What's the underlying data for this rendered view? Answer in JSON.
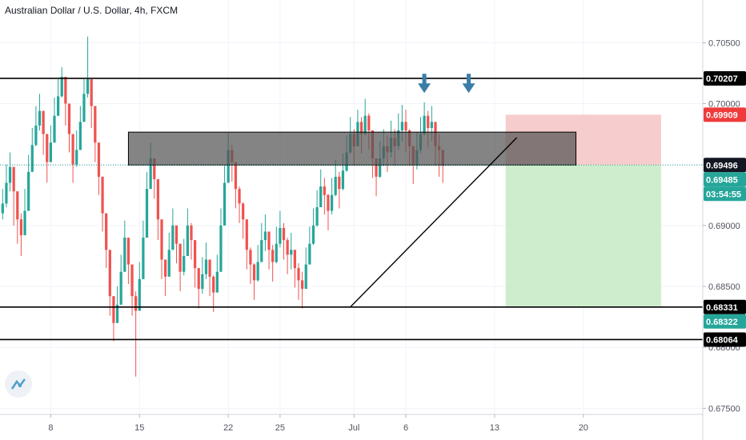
{
  "header": {
    "title": "Australian Dollar / U.S. Dollar, 4h, FXCM"
  },
  "colors": {
    "up": "#26a69a",
    "down": "#ef5350",
    "resistance_box": "#555555",
    "stop_zone": "#f6c6c6",
    "target_zone": "#c8ebc8",
    "current_line": "#26a69a",
    "arrow": "#3a7ea8"
  },
  "price_axis": {
    "ticks": [
      "0.70500",
      "0.70000",
      "0.69500",
      "0.69000",
      "0.68500",
      "0.68000",
      "0.67500"
    ],
    "badges": [
      {
        "label": "0.70207",
        "value": 0.70207,
        "bg": "#000000"
      },
      {
        "label": "0.69909",
        "value": 0.69909,
        "bg": "#ef3b3b"
      },
      {
        "label": "0.69496",
        "value": 0.69496,
        "bg": "#131722"
      },
      {
        "label": "0.69485",
        "value": 0.69485,
        "bg": "#26a69a"
      },
      {
        "label": "03:54:55",
        "value": 0.69318,
        "bg": "#26a69a"
      },
      {
        "label": "0.68331",
        "value": 0.68331,
        "bg": "#000000"
      },
      {
        "label": "0.68322",
        "value": 0.68322,
        "bg": "#26a69a"
      },
      {
        "label": "0.68064",
        "value": 0.68064,
        "bg": "#000000"
      }
    ]
  },
  "time_axis": {
    "ticks": [
      {
        "label": "8",
        "bar": 13
      },
      {
        "label": "15",
        "bar": 37
      },
      {
        "label": "22",
        "bar": 61
      },
      {
        "label": "25",
        "bar": 75
      },
      {
        "label": "Jul",
        "bar": 95
      },
      {
        "label": "6",
        "bar": 109
      },
      {
        "label": "13",
        "bar": 133
      },
      {
        "label": "20",
        "bar": 157
      }
    ]
  },
  "chart_data": {
    "type": "candlestick",
    "title": "Australian Dollar / U.S. Dollar, 4h, FXCM",
    "ylim": [
      0.6745,
      0.7085
    ],
    "bar_count_visible": 190,
    "close": [
      0.6918,
      0.6935,
      0.6948,
      0.6928,
      0.6905,
      0.6892,
      0.6912,
      0.6944,
      0.6966,
      0.6982,
      0.6994,
      0.6975,
      0.6952,
      0.6968,
      0.699,
      0.7006,
      0.7022,
      0.7,
      0.6975,
      0.695,
      0.6962,
      0.6985,
      0.7008,
      0.702,
      0.6998,
      0.6968,
      0.694,
      0.691,
      0.688,
      0.6842,
      0.682,
      0.6835,
      0.6862,
      0.689,
      0.6868,
      0.6842,
      0.683,
      0.6856,
      0.689,
      0.693,
      0.6955,
      0.6938,
      0.6905,
      0.6872,
      0.6858,
      0.688,
      0.69,
      0.6885,
      0.6862,
      0.6875,
      0.69,
      0.6888,
      0.6865,
      0.6848,
      0.686,
      0.6872,
      0.6858,
      0.6845,
      0.6862,
      0.69,
      0.6935,
      0.6962,
      0.6952,
      0.693,
      0.6918,
      0.6905,
      0.688,
      0.6868,
      0.6855,
      0.687,
      0.6888,
      0.6895,
      0.688,
      0.687,
      0.6885,
      0.6898,
      0.6888,
      0.6876,
      0.688,
      0.6865,
      0.6855,
      0.6848,
      0.6868,
      0.6885,
      0.69,
      0.6915,
      0.6932,
      0.6925,
      0.6912,
      0.6925,
      0.694,
      0.693,
      0.6945,
      0.696,
      0.6975,
      0.6965,
      0.6985,
      0.6975,
      0.699,
      0.6978,
      0.6955,
      0.694,
      0.6955,
      0.6965,
      0.696,
      0.6972,
      0.6965,
      0.6978,
      0.6985,
      0.6978,
      0.6965,
      0.695,
      0.6962,
      0.6975,
      0.699,
      0.698,
      0.6985,
      0.6965,
      0.6962,
      0.6949
    ],
    "high": [
      0.693,
      0.695,
      0.696,
      0.694,
      0.6918,
      0.691,
      0.693,
      0.6958,
      0.698,
      0.6998,
      0.7008,
      0.699,
      0.6968,
      0.6982,
      0.7005,
      0.702,
      0.703,
      0.7012,
      0.699,
      0.6965,
      0.6978,
      0.6998,
      0.702,
      0.7055,
      0.701,
      0.6982,
      0.6955,
      0.6925,
      0.6895,
      0.6858,
      0.6836,
      0.685,
      0.6876,
      0.6904,
      0.6882,
      0.6856,
      0.6846,
      0.687,
      0.6904,
      0.6944,
      0.6968,
      0.6952,
      0.692,
      0.6886,
      0.6872,
      0.6894,
      0.6914,
      0.6899,
      0.6876,
      0.6889,
      0.6914,
      0.6902,
      0.6879,
      0.6862,
      0.6874,
      0.6886,
      0.6872,
      0.6859,
      0.6876,
      0.6914,
      0.6949,
      0.6976,
      0.6966,
      0.6944,
      0.6932,
      0.6919,
      0.6894,
      0.6882,
      0.6869,
      0.6884,
      0.6902,
      0.6909,
      0.6894,
      0.6884,
      0.6899,
      0.6912,
      0.6902,
      0.689,
      0.6894,
      0.6879,
      0.6869,
      0.6862,
      0.6882,
      0.6899,
      0.6914,
      0.6929,
      0.6946,
      0.6939,
      0.6926,
      0.6939,
      0.6954,
      0.6944,
      0.6959,
      0.6974,
      0.6989,
      0.6979,
      0.6995,
      0.6989,
      0.7004,
      0.6992,
      0.6969,
      0.6954,
      0.6969,
      0.6979,
      0.6974,
      0.6986,
      0.6979,
      0.6992,
      0.6999,
      0.6995,
      0.6979,
      0.6964,
      0.6976,
      0.6989,
      0.7001,
      0.6994,
      0.6998,
      0.698,
      0.6975,
      0.6962
    ],
    "low": [
      0.6905,
      0.6915,
      0.6928,
      0.69,
      0.6885,
      0.6875,
      0.6895,
      0.6925,
      0.695,
      0.6965,
      0.6978,
      0.6958,
      0.6935,
      0.6952,
      0.6975,
      0.699,
      0.7005,
      0.6982,
      0.696,
      0.6935,
      0.6948,
      0.697,
      0.6992,
      0.7005,
      0.698,
      0.6952,
      0.6925,
      0.6895,
      0.6865,
      0.6826,
      0.6805,
      0.682,
      0.6846,
      0.6874,
      0.6852,
      0.6826,
      0.6776,
      0.684,
      0.6874,
      0.6914,
      0.6938,
      0.6922,
      0.6888,
      0.6856,
      0.6842,
      0.6864,
      0.6884,
      0.6869,
      0.6846,
      0.6859,
      0.6884,
      0.6872,
      0.6849,
      0.6832,
      0.6844,
      0.6856,
      0.6842,
      0.6829,
      0.6846,
      0.6884,
      0.6919,
      0.6946,
      0.6936,
      0.6914,
      0.6902,
      0.6889,
      0.6864,
      0.6852,
      0.6839,
      0.6854,
      0.6872,
      0.6879,
      0.6864,
      0.6854,
      0.6869,
      0.6882,
      0.6872,
      0.686,
      0.6864,
      0.6849,
      0.6839,
      0.6832,
      0.6852,
      0.6869,
      0.6884,
      0.6899,
      0.6916,
      0.6909,
      0.6896,
      0.6909,
      0.6924,
      0.6914,
      0.6929,
      0.6944,
      0.6959,
      0.6949,
      0.6969,
      0.6959,
      0.6974,
      0.6962,
      0.6939,
      0.6924,
      0.6939,
      0.6949,
      0.6944,
      0.6956,
      0.6949,
      0.6962,
      0.6969,
      0.696,
      0.6949,
      0.6934,
      0.6946,
      0.6959,
      0.6974,
      0.6964,
      0.6969,
      0.6949,
      0.694,
      0.6935
    ],
    "horizontal_levels": [
      0.70207,
      0.68331,
      0.68064
    ],
    "resistance_zone": {
      "from_bar": 34,
      "to_bar": 155,
      "top": 0.69766,
      "bottom": 0.69496
    },
    "trendline": {
      "from": {
        "bar": 94,
        "price": 0.68331
      },
      "to": {
        "bar": 139,
        "price": 0.69721
      }
    },
    "position": {
      "type": "short",
      "entry": 0.69496,
      "stop": 0.69909,
      "target": 0.68331,
      "from_bar": 136,
      "to_bar": 178
    },
    "markers": [
      {
        "type": "arrow-down",
        "bar": 114,
        "price": 0.70061
      },
      {
        "type": "arrow-down",
        "bar": 126,
        "price": 0.70061
      }
    ]
  }
}
